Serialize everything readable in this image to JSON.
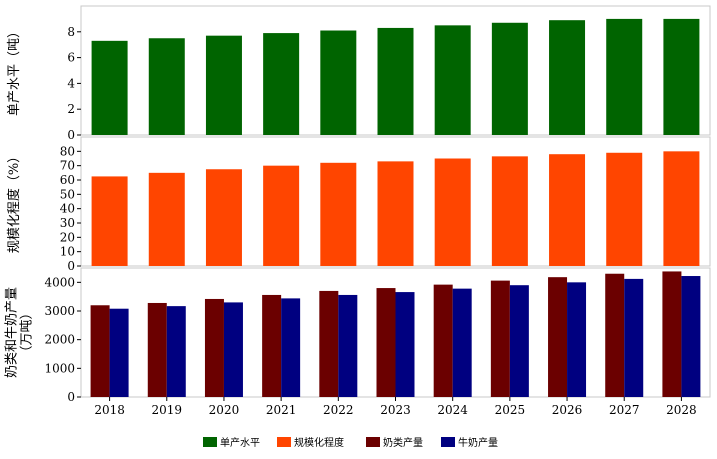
{
  "chart_data": {
    "type": "bar",
    "categories": [
      "2018",
      "2019",
      "2020",
      "2021",
      "2022",
      "2023",
      "2024",
      "2025",
      "2026",
      "2027",
      "2028"
    ],
    "panels": [
      {
        "ylabel": "单产水平（吨）",
        "ylim": [
          0,
          10
        ],
        "yticks": [
          0,
          2,
          4,
          6,
          8
        ],
        "grid": false,
        "series": [
          {
            "name": "单产水平",
            "color": "#006400",
            "values": [
              7.3,
              7.5,
              7.7,
              7.9,
              8.1,
              8.3,
              8.5,
              8.7,
              8.9,
              9.0,
              9.0
            ]
          }
        ]
      },
      {
        "ylabel": "规模化程度（%）",
        "ylim": [
          0,
          90
        ],
        "yticks": [
          0,
          10,
          20,
          30,
          40,
          50,
          60,
          70,
          80
        ],
        "grid": false,
        "series": [
          {
            "name": "规模化程度",
            "color": "#FF4500",
            "values": [
              62.5,
              65,
              67.5,
              70,
              72,
              73,
              75,
              76.5,
              78,
              79,
              80
            ]
          }
        ]
      },
      {
        "ylabel": "奶类和牛奶产量（万吨）",
        "ylim": [
          0,
          4500
        ],
        "yticks": [
          0,
          1000,
          2000,
          3000,
          4000
        ],
        "grid": false,
        "series": [
          {
            "name": "奶类产量",
            "color": "#6B0000",
            "values": [
              3200,
              3280,
              3420,
              3560,
              3700,
              3800,
              3920,
              4060,
              4180,
              4300,
              4380
            ]
          },
          {
            "name": "牛奶产量",
            "color": "#000080",
            "values": [
              3080,
              3170,
              3300,
              3440,
              3560,
              3660,
              3780,
              3900,
              4000,
              4120,
              4220
            ]
          }
        ]
      }
    ],
    "legend": {
      "placement": "bottom-center",
      "items": [
        {
          "label": "单产水平",
          "color": "#006400"
        },
        {
          "label": "规模化程度",
          "color": "#FF4500"
        },
        {
          "label": "奶类产量",
          "color": "#6B0000"
        },
        {
          "label": "牛奶产量",
          "color": "#000080"
        }
      ]
    }
  }
}
